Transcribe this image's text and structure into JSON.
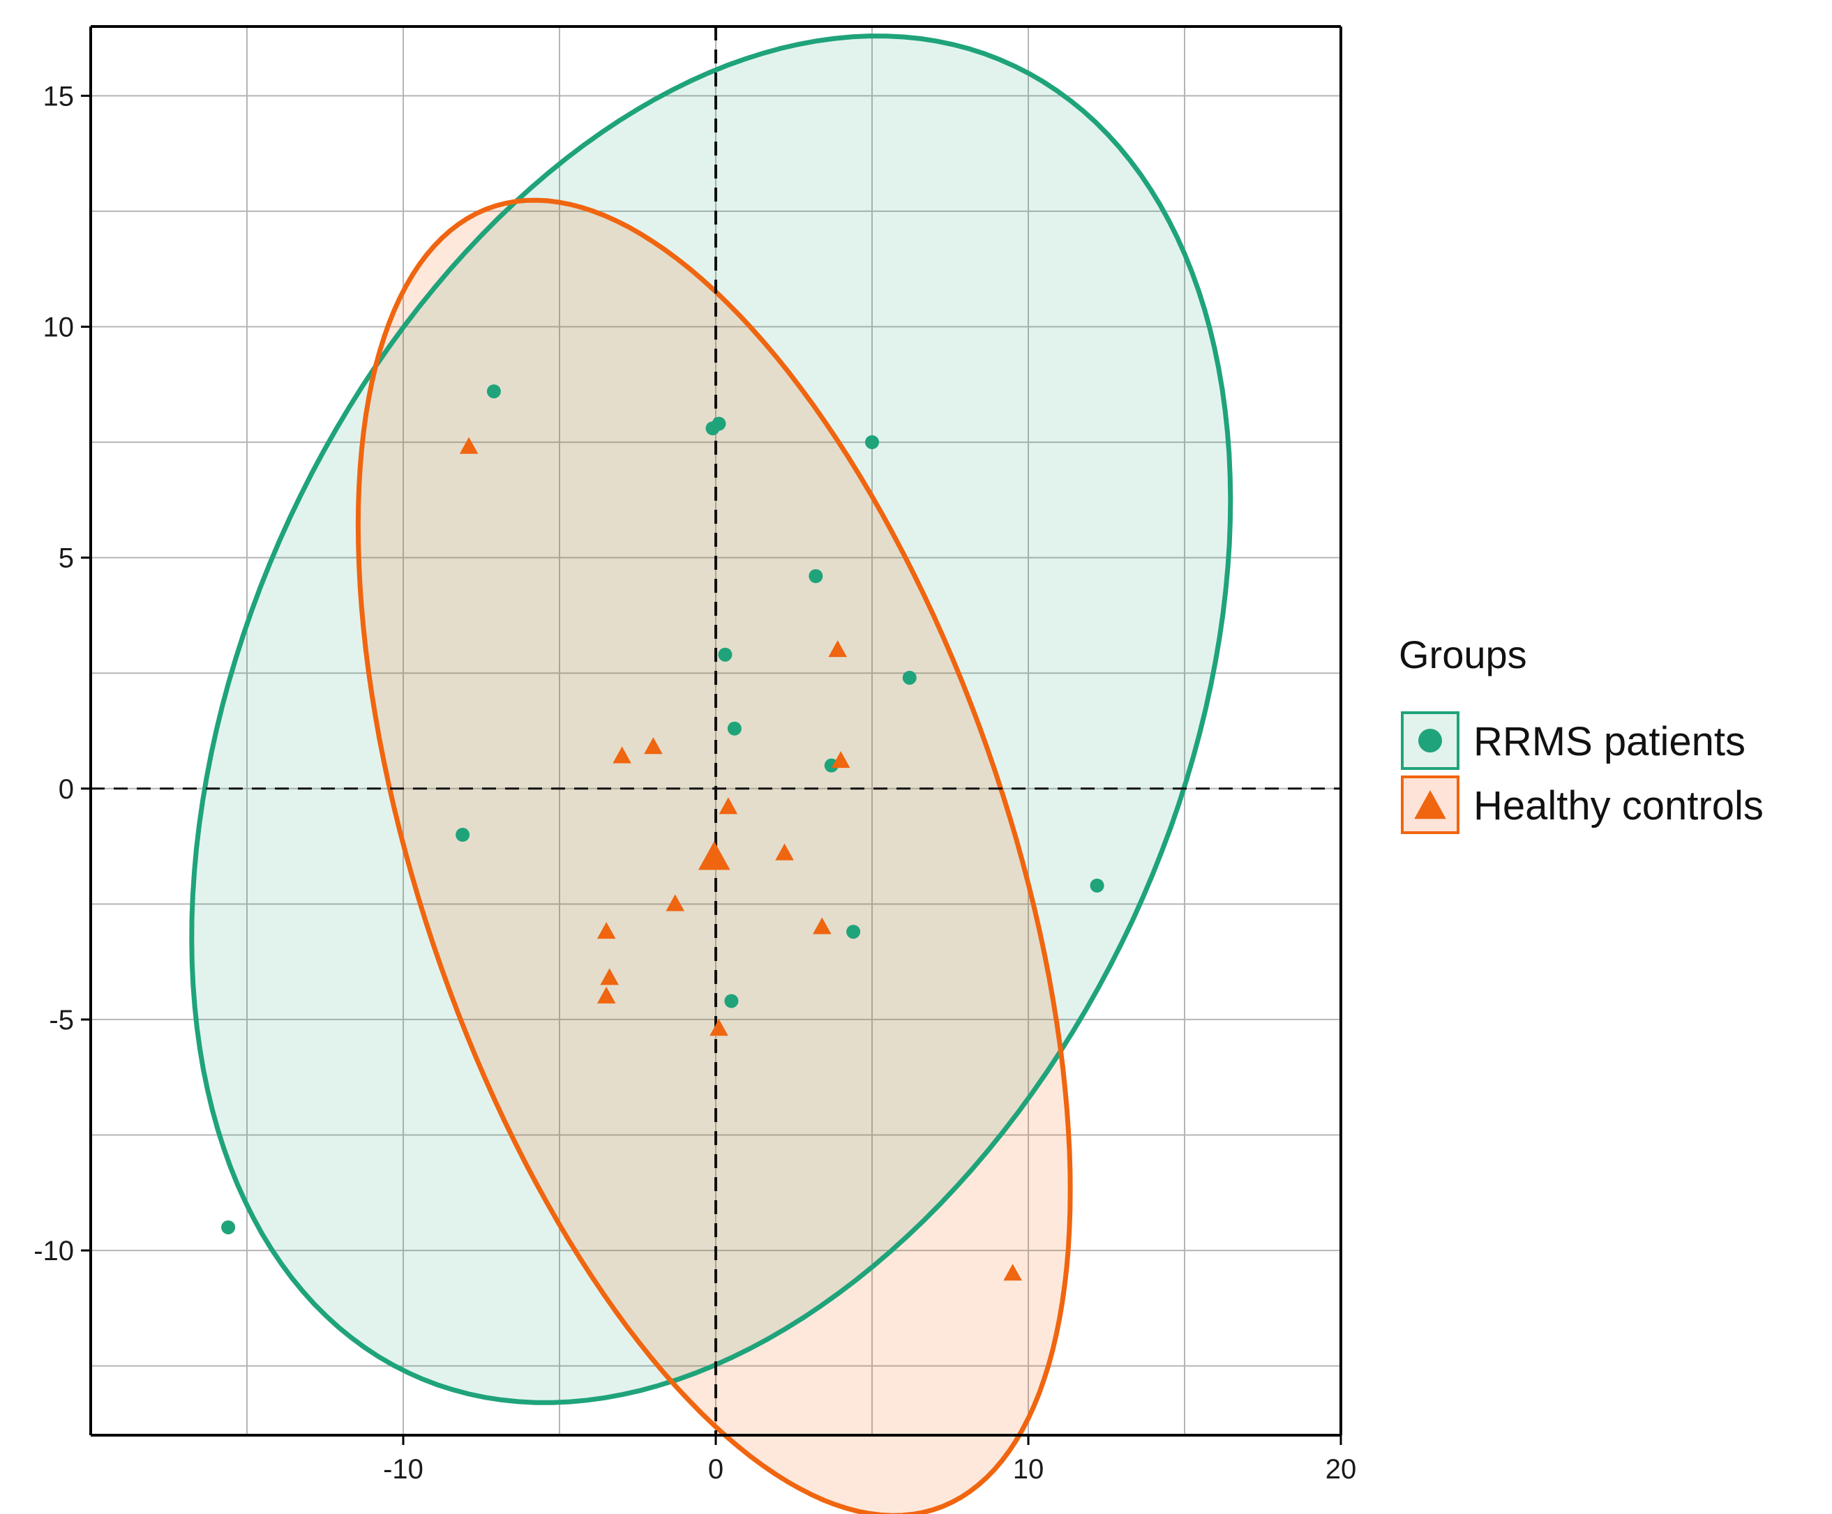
{
  "chart_data": {
    "type": "scatter",
    "title": "",
    "xlabel": "",
    "ylabel": "",
    "xlim": [
      -20,
      20
    ],
    "ylim": [
      -14,
      16.5
    ],
    "x_ticks": [
      -10,
      0,
      10,
      20
    ],
    "y_ticks": [
      -10,
      -5,
      0,
      5,
      10,
      15
    ],
    "x_tick_labels": [
      "-10",
      "0",
      "10",
      "20"
    ],
    "y_tick_labels": [
      "-10",
      "-5",
      "0",
      "5",
      "10",
      "15"
    ],
    "grid": true,
    "reference_lines": {
      "x": 0,
      "y": 0,
      "style": "dashed"
    },
    "legend": {
      "title": "Groups",
      "position": "right",
      "entries": [
        "RRMS patients",
        "Healthy controls"
      ]
    },
    "series": [
      {
        "name": "RRMS patients",
        "marker": "circle",
        "color": "#1fa37a",
        "points": [
          [
            -7.1,
            8.6
          ],
          [
            -0.1,
            7.8
          ],
          [
            0.1,
            7.9
          ],
          [
            5.0,
            7.5
          ],
          [
            3.2,
            4.6
          ],
          [
            0.3,
            2.9
          ],
          [
            6.2,
            2.4
          ],
          [
            0.6,
            1.3
          ],
          [
            3.7,
            0.5
          ],
          [
            -8.1,
            -1.0
          ],
          [
            12.2,
            -2.1
          ],
          [
            4.4,
            -3.1
          ],
          [
            0.5,
            -4.6
          ],
          [
            -15.6,
            -9.5
          ]
        ],
        "ellipse": {
          "center": [
            -0.15,
            1.5
          ],
          "semi_axes": [
            18.2,
            12.8
          ],
          "rotation_deg": 35
        }
      },
      {
        "name": "Healthy controls",
        "marker": "triangle",
        "color": "#f0650f",
        "points": [
          [
            -7.9,
            7.4
          ],
          [
            3.9,
            3.0
          ],
          [
            -3.0,
            0.7
          ],
          [
            -2.0,
            0.9
          ],
          [
            4.0,
            0.6
          ],
          [
            0.4,
            -0.4
          ],
          [
            2.2,
            -1.4
          ],
          [
            -1.3,
            -2.5
          ],
          [
            -3.5,
            -3.1
          ],
          [
            3.4,
            -3.0
          ],
          [
            -3.4,
            -4.1
          ],
          [
            -3.5,
            -4.5
          ],
          [
            0.1,
            -5.2
          ],
          [
            9.5,
            -10.5
          ]
        ],
        "centroid": [
          -0.05,
          -1.5
        ],
        "ellipse": {
          "center": [
            -0.05,
            -1.5
          ],
          "semi_axes": [
            16.0,
            8.75
          ],
          "rotation_deg": -57
        }
      }
    ]
  }
}
